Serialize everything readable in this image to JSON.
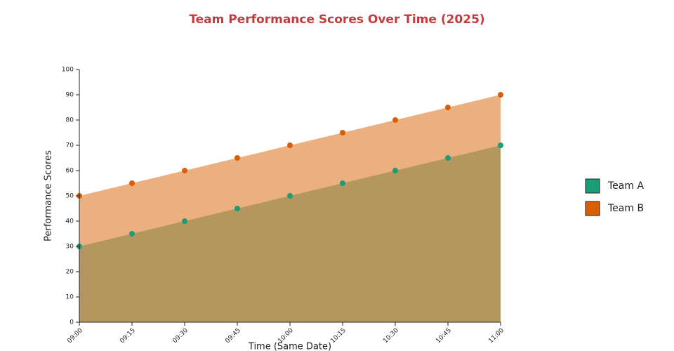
{
  "chart_data": {
    "type": "area",
    "title": "Team Performance Scores Over Time (2025)",
    "x_label": "Time (Same Date)",
    "y_label": "Performance Scores",
    "categories": [
      "09:00",
      "09:15",
      "09:30",
      "09:45",
      "10:00",
      "10:15",
      "10:30",
      "10:45",
      "11:00"
    ],
    "series": [
      {
        "name": "Team A",
        "color": "#1b9e77",
        "values": [
          30,
          35,
          40,
          45,
          50,
          55,
          60,
          65,
          70
        ]
      },
      {
        "name": "Team B",
        "color": "#d95f02",
        "values": [
          50,
          55,
          60,
          65,
          70,
          75,
          80,
          85,
          90
        ]
      }
    ],
    "ylim": [
      0,
      100
    ],
    "yticks": [
      0,
      10,
      20,
      30,
      40,
      50,
      60,
      70,
      80,
      90,
      100
    ]
  }
}
